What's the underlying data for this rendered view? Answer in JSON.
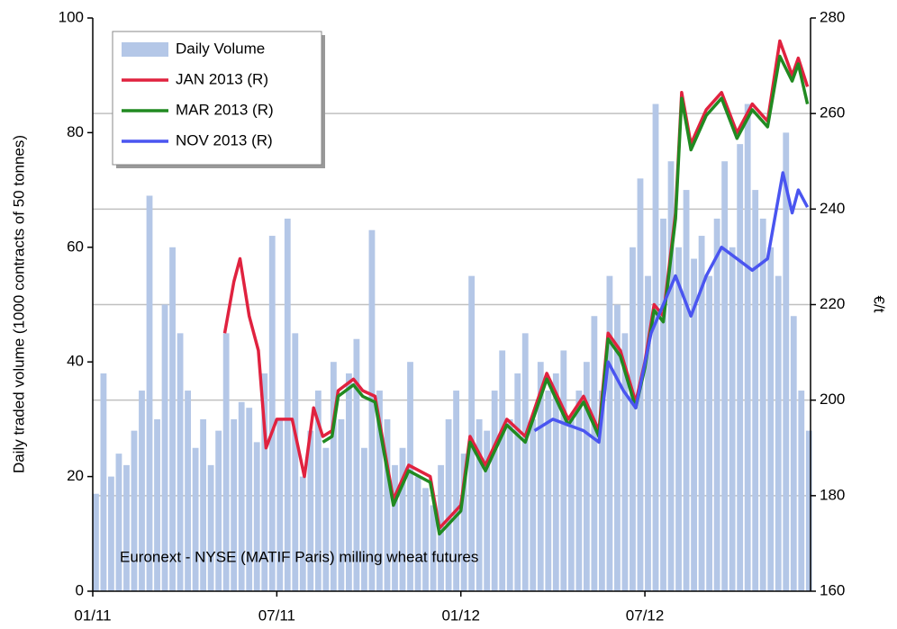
{
  "chart_data": {
    "type": "bar-line",
    "y_label": "Daily  traded volume (1000 contracts of 50 tonnes)",
    "y2_label": "€/t",
    "annotation": "Euronext - NYSE (MATIF Paris) milling wheat futures",
    "xlim": [
      0,
      23.4
    ],
    "xticks": [
      {
        "value": 0,
        "label": "01/11"
      },
      {
        "value": 6,
        "label": "07/11"
      },
      {
        "value": 12,
        "label": "01/12"
      },
      {
        "value": 18,
        "label": "07/12"
      }
    ],
    "ylim": [
      0,
      100
    ],
    "yticks": [
      0,
      20,
      40,
      60,
      80,
      100
    ],
    "y2lim": [
      160,
      280
    ],
    "y2ticks": [
      160,
      180,
      200,
      220,
      240,
      260,
      280
    ],
    "grid": "y2",
    "legend": "upper left",
    "series": [
      {
        "name": "Daily Volume",
        "type": "bar",
        "axis": "y",
        "color": "#b4c7e7",
        "x": [
          0,
          0.25,
          0.5,
          0.75,
          1,
          1.25,
          1.5,
          1.75,
          2,
          2.25,
          2.5,
          2.75,
          3,
          3.25,
          3.5,
          3.75,
          4,
          4.25,
          4.5,
          4.75,
          5,
          5.25,
          5.5,
          5.75,
          6,
          6.25,
          6.5,
          6.75,
          7,
          7.25,
          7.5,
          7.75,
          8,
          8.25,
          8.5,
          8.75,
          9,
          9.25,
          9.5,
          9.75,
          10,
          10.25,
          10.5,
          10.75,
          11,
          11.25,
          11.5,
          11.75,
          12,
          12.25,
          12.5,
          12.75,
          13,
          13.25,
          13.5,
          13.75,
          14,
          14.25,
          14.5,
          14.75,
          15,
          15.25,
          15.5,
          15.75,
          16,
          16.25,
          16.5,
          16.75,
          17,
          17.25,
          17.5,
          17.75,
          18,
          18.25,
          18.5,
          18.75,
          19,
          19.25,
          19.5,
          19.75,
          20,
          20.25,
          20.5,
          20.75,
          21,
          21.25,
          21.5,
          21.75,
          22,
          22.25,
          22.5,
          22.75,
          23,
          23.25
        ],
        "values": [
          17,
          38,
          20,
          24,
          22,
          28,
          35,
          69,
          30,
          50,
          60,
          45,
          35,
          25,
          30,
          22,
          28,
          45,
          30,
          33,
          32,
          26,
          38,
          62,
          30,
          65,
          45,
          20,
          28,
          35,
          25,
          40,
          30,
          38,
          44,
          25,
          63,
          35,
          30,
          22,
          25,
          40,
          20,
          18,
          15,
          22,
          30,
          35,
          24,
          55,
          30,
          28,
          35,
          42,
          30,
          38,
          45,
          30,
          40,
          35,
          38,
          42,
          30,
          35,
          40,
          48,
          35,
          55,
          50,
          45,
          60,
          72,
          55,
          85,
          65,
          75,
          60,
          70,
          58,
          62,
          55,
          65,
          75,
          60,
          78,
          85,
          70,
          65,
          60,
          55,
          80,
          48,
          35,
          28
        ]
      },
      {
        "name": "JAN 2013 (R)",
        "type": "line",
        "axis": "y2",
        "color": "#e0223f",
        "x": [
          4.3,
          4.6,
          4.8,
          5.1,
          5.4,
          5.65,
          6.0,
          6.5,
          6.9,
          7.2,
          7.5,
          7.8,
          8.0,
          8.5,
          8.8,
          9.2,
          9.5,
          9.8,
          10.3,
          11.0,
          11.3,
          12.0,
          12.3,
          12.8,
          13.5,
          14.1,
          14.8,
          15.5,
          16.0,
          16.5,
          16.8,
          17.2,
          17.7,
          18.0,
          18.3,
          18.6,
          19.0,
          19.2,
          19.5,
          20.0,
          20.5,
          21.0,
          21.5,
          22.0,
          22.4,
          22.8,
          23.0,
          23.3
        ],
        "values": [
          214,
          224.8,
          229.6,
          217.6,
          210.4,
          190,
          196,
          196,
          184,
          198.4,
          192.4,
          193.6,
          202,
          204.4,
          202,
          200.8,
          190,
          179.2,
          186.4,
          184,
          173.2,
          178,
          192.4,
          186.4,
          196,
          192.4,
          205.6,
          196,
          200.8,
          193.6,
          214,
          210.4,
          199.6,
          208,
          220,
          217.6,
          239.2,
          264.4,
          253.6,
          260.8,
          264.4,
          256,
          262,
          258.4,
          275.2,
          268,
          271.6,
          265.6
        ]
      },
      {
        "name": "MAR 2013 (R)",
        "type": "line",
        "axis": "y2",
        "color": "#218a21",
        "x": [
          7.5,
          7.8,
          8.0,
          8.5,
          8.8,
          9.2,
          9.5,
          9.8,
          10.3,
          11.0,
          11.3,
          12.0,
          12.3,
          12.8,
          13.5,
          14.1,
          14.8,
          15.5,
          16.0,
          16.5,
          16.8,
          17.2,
          17.7,
          18.0,
          18.3,
          18.6,
          19.0,
          19.2,
          19.5,
          20.0,
          20.5,
          21.0,
          21.5,
          22.0,
          22.4,
          22.8,
          23.0,
          23.3
        ],
        "values": [
          191.2,
          192.4,
          200.8,
          203.2,
          200.8,
          199.6,
          188.8,
          178,
          185.2,
          182.8,
          172,
          176.8,
          191.2,
          185.2,
          194.8,
          191.2,
          204.4,
          194.8,
          199.6,
          192.4,
          212.8,
          209.2,
          198.4,
          206.8,
          218.8,
          216.4,
          238,
          263.2,
          252.4,
          259.6,
          263.2,
          254.8,
          260.8,
          257.2,
          272,
          266.8,
          270.4,
          262
        ]
      },
      {
        "name": "NOV 2013 (R)",
        "type": "line",
        "axis": "y2",
        "color": "#4a55f0",
        "x": [
          14.4,
          15.0,
          15.5,
          16.0,
          16.5,
          16.8,
          17.3,
          17.7,
          18.2,
          18.6,
          19.0,
          19.5,
          20.0,
          20.5,
          21.0,
          21.5,
          22.0,
          22.5,
          22.8,
          23.0,
          23.3
        ],
        "values": [
          193.6,
          196,
          194.8,
          193.6,
          191.2,
          208,
          202,
          198.4,
          214,
          220,
          226,
          217.6,
          226,
          232,
          229.6,
          227.2,
          229.6,
          247.6,
          239.2,
          244,
          240.4
        ]
      }
    ]
  }
}
